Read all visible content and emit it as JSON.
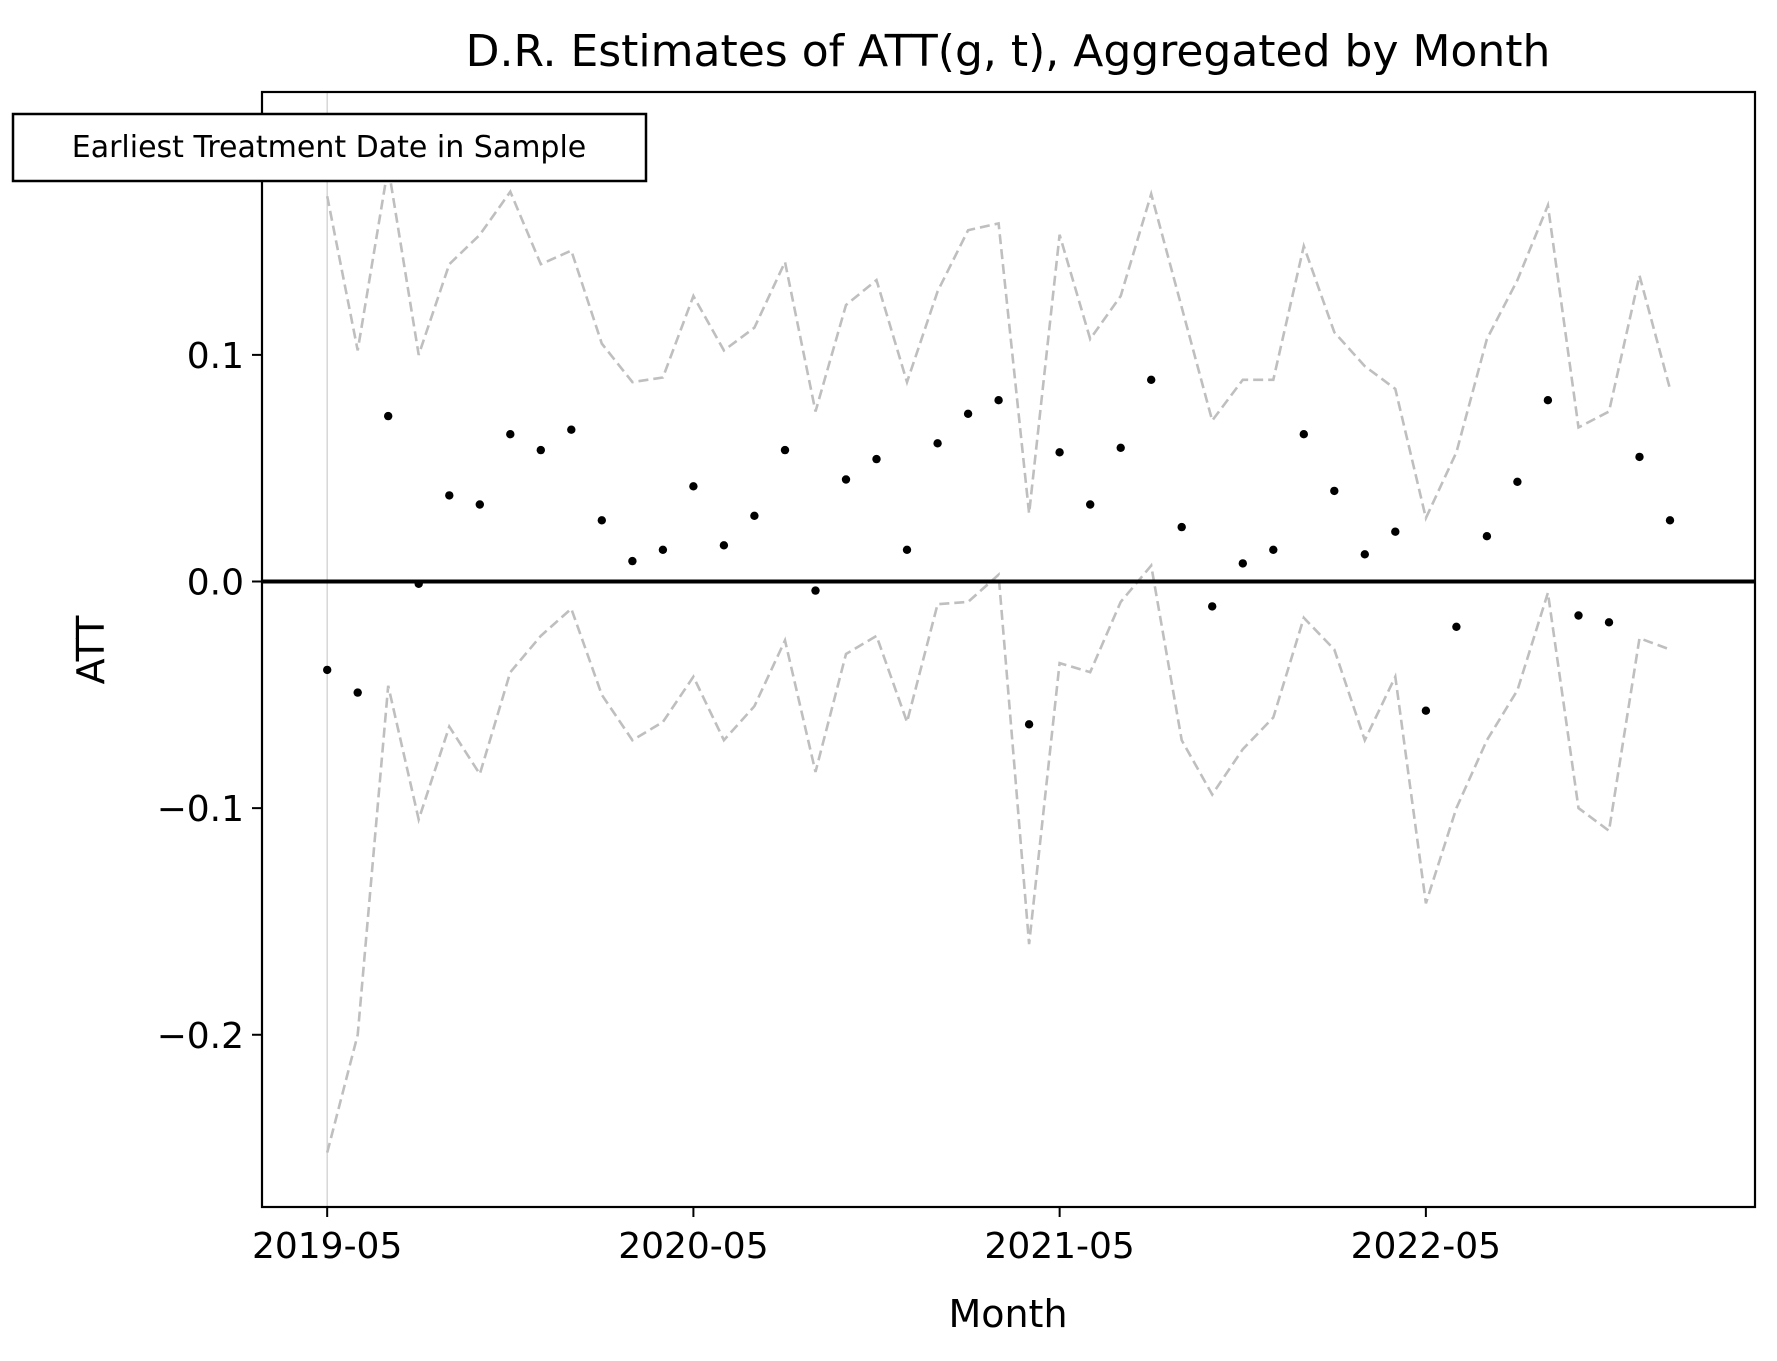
{
  "chart_data": {
    "type": "scatter",
    "title": "D.R. Estimates of ATT(g, t), Aggregated by Month",
    "xlabel": "Month",
    "ylabel": "ATT",
    "x_ticks": [
      "2019-05",
      "2020-05",
      "2021-05",
      "2022-05"
    ],
    "y_ticks": [
      {
        "value": 0.1,
        "label": "0.1"
      },
      {
        "value": 0.0,
        "label": "0.0"
      },
      {
        "value": -0.1,
        "label": "−0.1"
      },
      {
        "value": -0.2,
        "label": "−0.2"
      }
    ],
    "xlim": [
      "2019-02-25",
      "2023-03-25"
    ],
    "ylim": [
      -0.276,
      0.216
    ],
    "grid": false,
    "annotation": "Earliest Treatment Date in Sample",
    "annotation_date": "2019-05",
    "reference_line_y": 0.0,
    "colors": {
      "points": "#000000",
      "ci_band": "#bfbfbf",
      "zero_line": "#000000",
      "marker_line": "#cccccc"
    },
    "x": [
      "2019-05",
      "2019-06",
      "2019-07",
      "2019-08",
      "2019-09",
      "2019-10",
      "2019-11",
      "2019-12",
      "2020-01",
      "2020-02",
      "2020-03",
      "2020-04",
      "2020-05",
      "2020-06",
      "2020-07",
      "2020-08",
      "2020-09",
      "2020-10",
      "2020-11",
      "2020-12",
      "2021-01",
      "2021-02",
      "2021-03",
      "2021-04",
      "2021-05",
      "2021-06",
      "2021-07",
      "2021-08",
      "2021-09",
      "2021-10",
      "2021-11",
      "2021-12",
      "2022-01",
      "2022-02",
      "2022-03",
      "2022-04",
      "2022-05",
      "2022-06",
      "2022-07",
      "2022-08",
      "2022-09",
      "2022-10",
      "2022-11",
      "2022-12",
      "2023-01"
    ],
    "series": [
      {
        "values": [
          -0.039,
          -0.049,
          0.073,
          -0.001,
          0.038,
          0.034,
          0.065,
          0.058,
          0.067,
          0.027,
          0.009,
          0.014,
          0.042,
          0.016,
          0.029,
          0.058,
          -0.004,
          0.045,
          0.054,
          0.014,
          0.061,
          0.074,
          0.08,
          -0.063,
          0.057,
          0.034,
          0.059,
          0.089,
          0.024,
          -0.011,
          0.008,
          0.014,
          0.065,
          0.04,
          0.012,
          0.022,
          -0.057,
          -0.02,
          0.02,
          0.044,
          0.08,
          -0.015,
          -0.018,
          0.055,
          0.027
        ]
      },
      {
        "values": [
          0.17,
          0.102,
          0.183,
          0.1,
          0.14,
          0.153,
          0.172,
          0.14,
          0.146,
          0.105,
          0.088,
          0.09,
          0.126,
          0.102,
          0.112,
          0.141,
          0.075,
          0.122,
          0.133,
          0.088,
          0.128,
          0.155,
          0.158,
          0.03,
          0.153,
          0.107,
          0.126,
          0.171,
          0.121,
          0.071,
          0.089,
          0.089,
          0.148,
          0.11,
          0.095,
          0.085,
          0.028,
          0.057,
          0.107,
          0.133,
          0.166,
          0.068,
          0.075,
          0.135,
          0.085
        ]
      },
      {
        "values": [
          -0.252,
          -0.2,
          -0.046,
          -0.105,
          -0.064,
          -0.085,
          -0.04,
          -0.024,
          -0.012,
          -0.05,
          -0.07,
          -0.062,
          -0.042,
          -0.07,
          -0.055,
          -0.026,
          -0.084,
          -0.032,
          -0.024,
          -0.062,
          -0.01,
          -0.009,
          0.003,
          -0.16,
          -0.036,
          -0.04,
          -0.009,
          0.007,
          -0.07,
          -0.094,
          -0.074,
          -0.06,
          -0.016,
          -0.03,
          -0.07,
          -0.042,
          -0.142,
          -0.1,
          -0.07,
          -0.048,
          -0.005,
          -0.1,
          -0.11,
          -0.025,
          -0.03
        ]
      }
    ]
  }
}
